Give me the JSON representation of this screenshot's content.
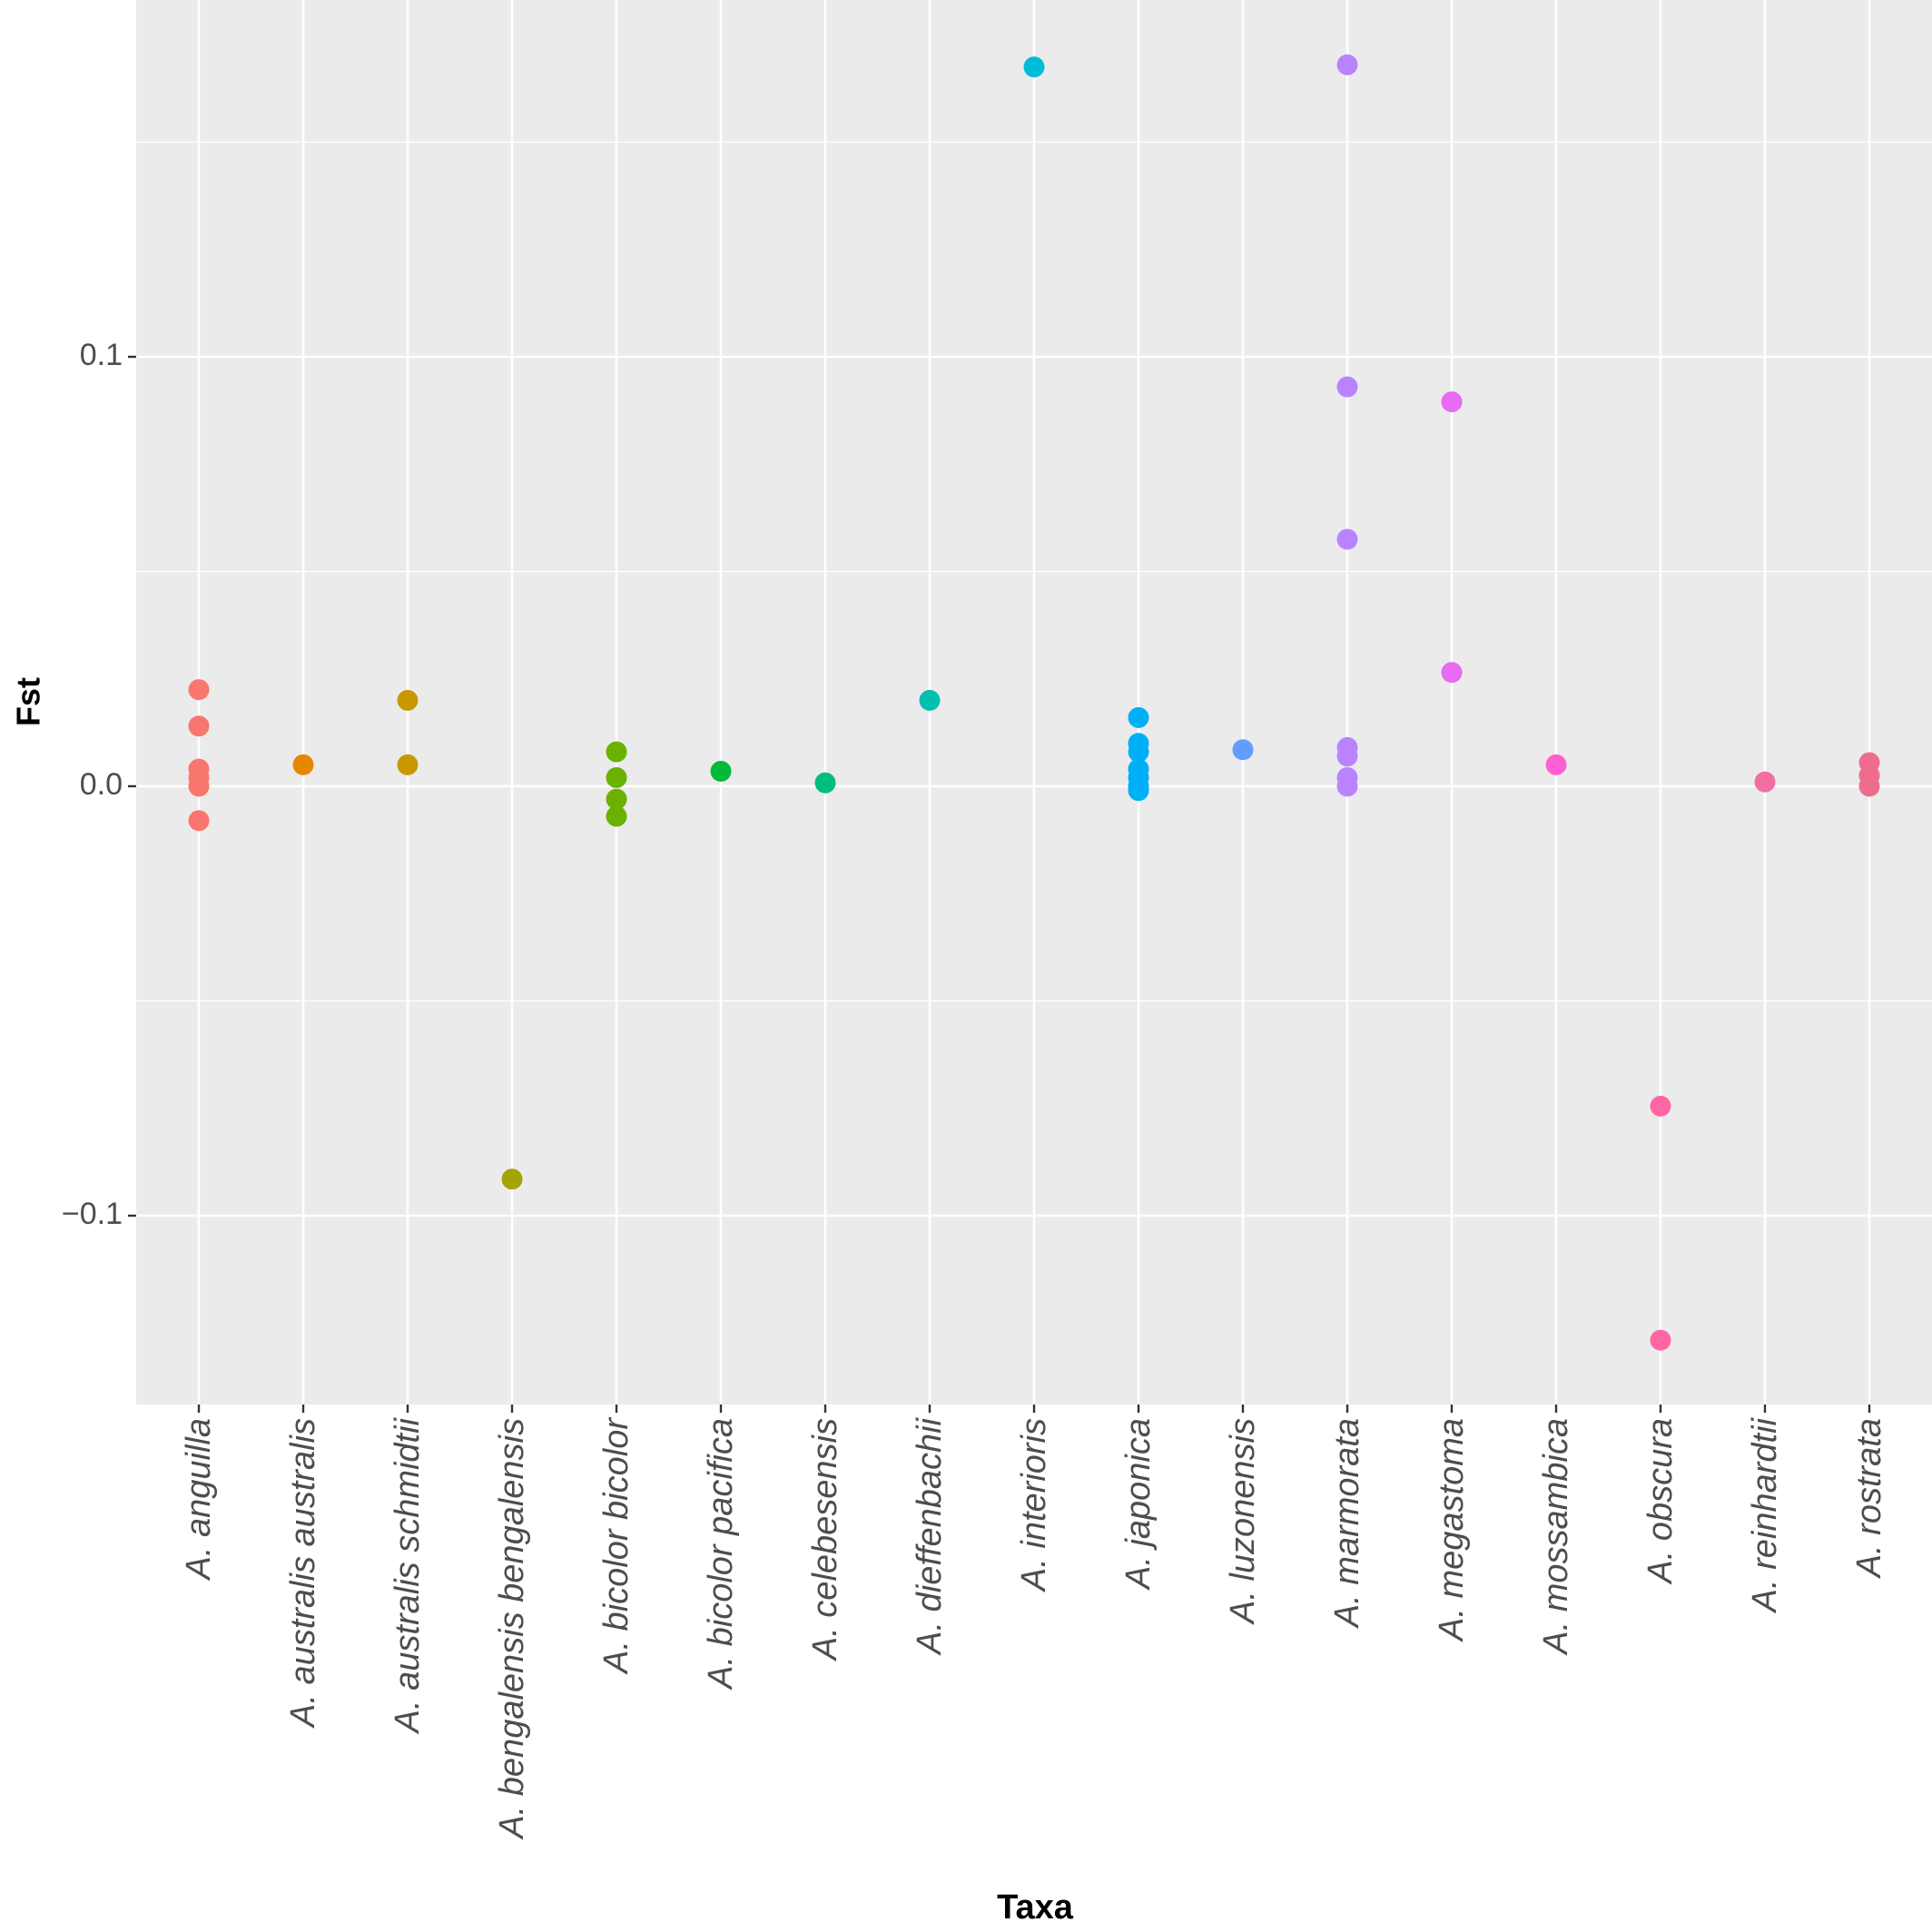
{
  "chart_data": {
    "type": "scatter",
    "title": "",
    "xlabel": "Taxa",
    "ylabel": "Fst",
    "ylim": [
      -0.1435,
      0.1825
    ],
    "yticks": [
      -0.1,
      0.0,
      0.1
    ],
    "ytick_labels": [
      "−0.1",
      "0.0",
      "0.1"
    ],
    "grid": true,
    "legend": "none",
    "categories": [
      "A. anguilla",
      "A. australis australis",
      "A. australis schmidtii",
      "A. bengalensis bengalensis",
      "A. bicolor bicolor",
      "A. bicolor pacifica",
      "A. celebesensis",
      "A. dieffenbachii",
      "A. interioris",
      "A. japonica",
      "A. luzonensis",
      "A. marmorata",
      "A. megastoma",
      "A. mossambica",
      "A. obscura",
      "A. reinhardtii",
      "A. rostrata"
    ],
    "colors": [
      "#F8766D",
      "#E58700",
      "#C99800",
      "#A3A500",
      "#6BB100",
      "#00BA38",
      "#00BF7D",
      "#00C0AF",
      "#00BCD8",
      "#00B0F6",
      "#619CFF",
      "#B983FF",
      "#E76BF3",
      "#FD61D1",
      "#FF67A4",
      "#F06FA0",
      "#EE6D8F"
    ],
    "series": [
      {
        "name": "A. anguilla",
        "values": [
          0.0225,
          0.014,
          0.004,
          0.002,
          0.0,
          -0.008
        ]
      },
      {
        "name": "A. australis australis",
        "values": [
          0.005
        ]
      },
      {
        "name": "A. australis schmidtii",
        "values": [
          0.02,
          0.005
        ]
      },
      {
        "name": "A. bengalensis bengalensis",
        "values": [
          -0.0915
        ]
      },
      {
        "name": "A. bicolor bicolor",
        "values": [
          0.008,
          0.002,
          -0.003,
          -0.007
        ]
      },
      {
        "name": "A. bicolor pacifica",
        "values": [
          0.0035
        ]
      },
      {
        "name": "A. celebesensis",
        "values": [
          0.0008
        ]
      },
      {
        "name": "A. dieffenbachii",
        "values": [
          0.02
        ]
      },
      {
        "name": "A. interioris",
        "values": [
          0.1675
        ]
      },
      {
        "name": "A. japonica",
        "values": [
          0.016,
          0.01,
          0.008,
          0.004,
          0.002,
          0.0,
          -0.001
        ]
      },
      {
        "name": "A. luzonensis",
        "values": [
          0.0085
        ]
      },
      {
        "name": "A. marmorata",
        "values": [
          0.168,
          0.093,
          0.0575,
          0.009,
          0.007,
          0.002,
          0.0
        ]
      },
      {
        "name": "A. megastoma",
        "values": [
          0.0895,
          0.0265
        ]
      },
      {
        "name": "A. mossambica",
        "values": [
          0.005
        ]
      },
      {
        "name": "A. obscura",
        "values": [
          -0.0745,
          -0.129
        ]
      },
      {
        "name": "A. reinhardtii",
        "values": [
          0.001
        ]
      },
      {
        "name": "A. rostrata",
        "values": [
          0.0055,
          0.0025,
          0.0
        ]
      }
    ]
  }
}
